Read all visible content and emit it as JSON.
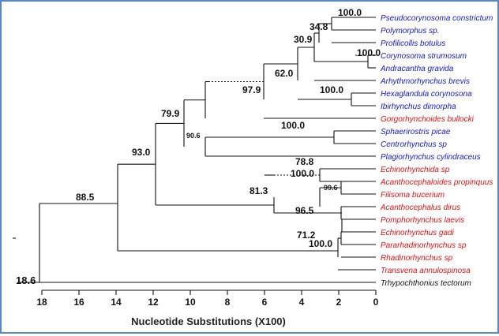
{
  "colors": {
    "blue": "#1515cc",
    "red": "#dd1111",
    "black": "#111111",
    "frame": "#5b86c5"
  },
  "root_label": "18.6",
  "axis": {
    "title": "Nucleotide Substitutions (X100)",
    "ticks": [
      "18",
      "16",
      "14",
      "12",
      "10",
      "8",
      "6",
      "4",
      "2",
      "0"
    ]
  },
  "taxa": [
    {
      "name": "Pseudocorynosoma constrictum",
      "color": "blue"
    },
    {
      "name": "Polymorphus sp.",
      "color": "blue"
    },
    {
      "name": "Profilicollis botulus",
      "color": "blue"
    },
    {
      "name": "Corynosoma strumosum",
      "color": "blue"
    },
    {
      "name": "Andracantha gravida",
      "color": "blue"
    },
    {
      "name": "Arhythmorhynchus brevis",
      "color": "blue"
    },
    {
      "name": "Hexaglandula corynosona",
      "color": "blue"
    },
    {
      "name": "Ibirhynchus dimorpha",
      "color": "blue"
    },
    {
      "name": "Gorgorhynchoides bullocki",
      "color": "red"
    },
    {
      "name": "Sphaerirostris picae",
      "color": "blue"
    },
    {
      "name": "Centrorhynchus sp",
      "color": "blue"
    },
    {
      "name": "Plagiorhynchus cylindraceus",
      "color": "blue"
    },
    {
      "name": "Echinorhynchida sp",
      "color": "red"
    },
    {
      "name": "Acanthocephaloides propinquus",
      "color": "red"
    },
    {
      "name": "Filisoma bucerium",
      "color": "red"
    },
    {
      "name": "Acanthocephalus dirus",
      "color": "red"
    },
    {
      "name": "Pomphorhynchus laevis",
      "color": "red"
    },
    {
      "name": "Echinorhynchus gadi",
      "color": "red"
    },
    {
      "name": "Pararhadinorhynchus sp",
      "color": "red"
    },
    {
      "name": "Rhadinorhynchus sp",
      "color": "red"
    },
    {
      "name": "Transvena annulospinosa",
      "color": "red"
    },
    {
      "name": "Trhypochthonius tectorum",
      "color": "black"
    }
  ],
  "support": [
    "100.0",
    "34.8",
    "30.9",
    "100.0",
    "62.0",
    "100.0",
    "97.9",
    "79.9",
    "100.0",
    "90.6",
    "93.0",
    "78.8",
    "100.0",
    "99.6",
    "81.3",
    "96.5",
    "88.5",
    "71.2",
    "100.0"
  ]
}
